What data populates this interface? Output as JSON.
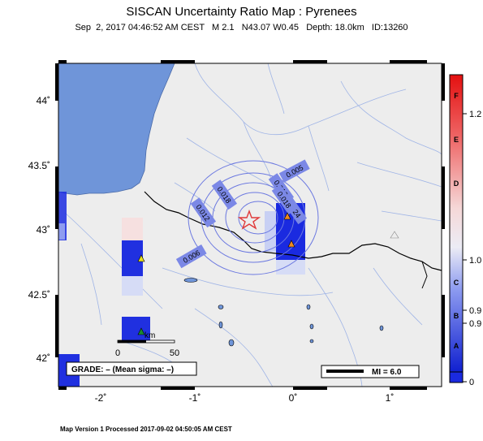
{
  "map": {
    "title": "SISCAN Uncertainty Ratio Map : Pyrenees",
    "subtitle": "Sep  2, 2017 04:46:52 AM CEST   M 2.1   N43.07 W0.45   Depth: 18.0km   ID:13260",
    "footer": "Map Version 1 Processed 2017-09-02 04:50:05 AM CEST",
    "lon_ticks": [
      "-2˚",
      "-1˚",
      "0˚",
      "1˚"
    ],
    "lat_ticks": [
      "44˚",
      "43.5˚",
      "43˚",
      "42.5˚",
      "42˚"
    ],
    "contour_labels": [
      "0.005",
      "0.012",
      "0.018",
      "0.024",
      "0.012",
      "0.018",
      "0.006"
    ],
    "scale_bar": {
      "unit": "km",
      "start": "0",
      "end": "50"
    },
    "grade_text": "GRADE: – (Mean sigma: –)",
    "mi_legend": "MI = 6.0",
    "epicenter": {
      "lat": 43.07,
      "lon": -0.45
    },
    "colors": {
      "sea": "#6f95d9",
      "land": "#ededed",
      "border": "#000000",
      "river": "#9fb4e6",
      "contour": "#6b78e0",
      "star": "#e03a3a"
    }
  },
  "colorbar": {
    "grades": [
      "F",
      "E",
      "D",
      "C",
      "B",
      "A"
    ],
    "values": [
      "1.2",
      "1.0",
      "0.9",
      "0.9",
      "0"
    ]
  }
}
